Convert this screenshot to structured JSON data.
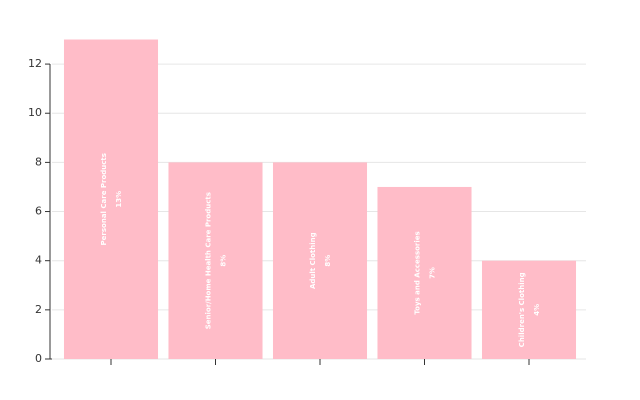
{
  "chart_data": {
    "type": "bar",
    "categories": [
      "Personal Care Products",
      "Senior/Home Health Care Products",
      "Adult Clothing",
      "Toys and Accessories",
      "Children's Clothing"
    ],
    "values": [
      13,
      8,
      8,
      7,
      4
    ],
    "value_labels": [
      "13%",
      "8%",
      "8%",
      "7%",
      "4%"
    ],
    "color": "#ffbcc8",
    "ylim": [
      0,
      13
    ],
    "yticks": [
      0,
      2,
      4,
      6,
      8,
      10,
      12
    ],
    "grid": true
  }
}
